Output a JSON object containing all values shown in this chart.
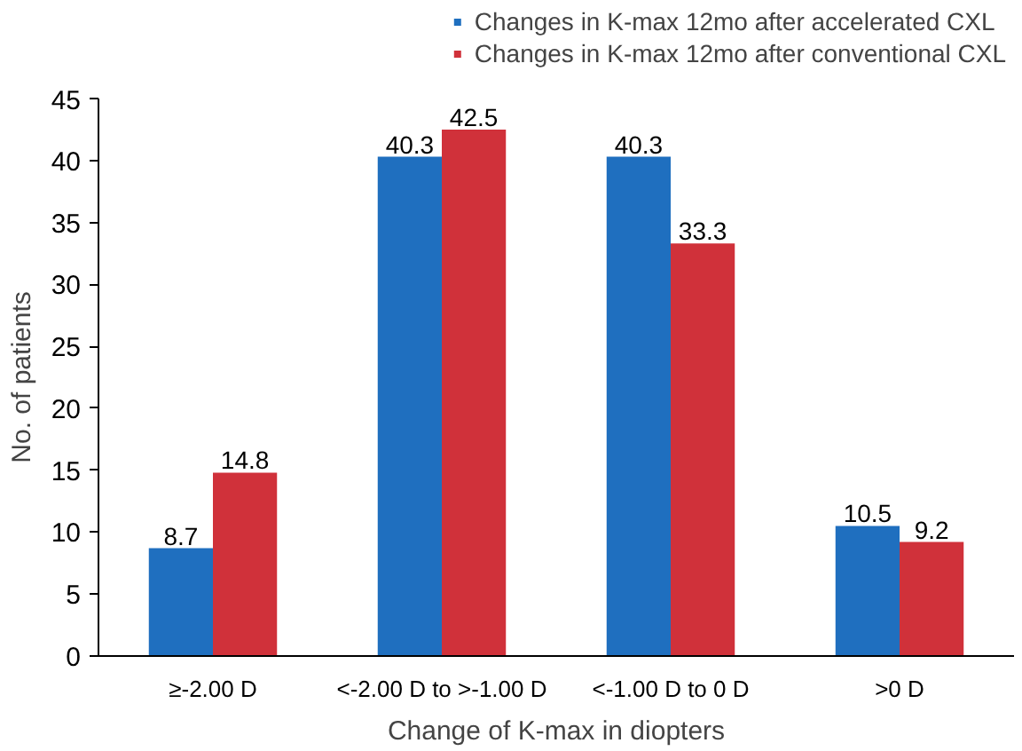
{
  "chart_data": {
    "type": "bar",
    "xlabel": "Change of K-max in diopters",
    "ylabel": "No. of patients",
    "categories": [
      "≥-2.00 D",
      "<-2.00 D to >-1.00 D",
      "<-1.00 D to 0 D",
      ">0 D"
    ],
    "series": [
      {
        "name": "Changes in K-max 12mo after accelerated CXL",
        "color": "#1f6fbf",
        "values": [
          8.7,
          40.3,
          40.3,
          10.5
        ]
      },
      {
        "name": "Changes in K-max 12mo after conventional CXL",
        "color": "#d0313a",
        "values": [
          14.8,
          42.5,
          33.3,
          9.2
        ]
      }
    ],
    "ylim": [
      0,
      45
    ],
    "yticks": [
      0,
      5,
      10,
      15,
      20,
      25,
      30,
      35,
      40,
      45
    ],
    "grid": false,
    "legend": "top right",
    "data_labels": true
  }
}
